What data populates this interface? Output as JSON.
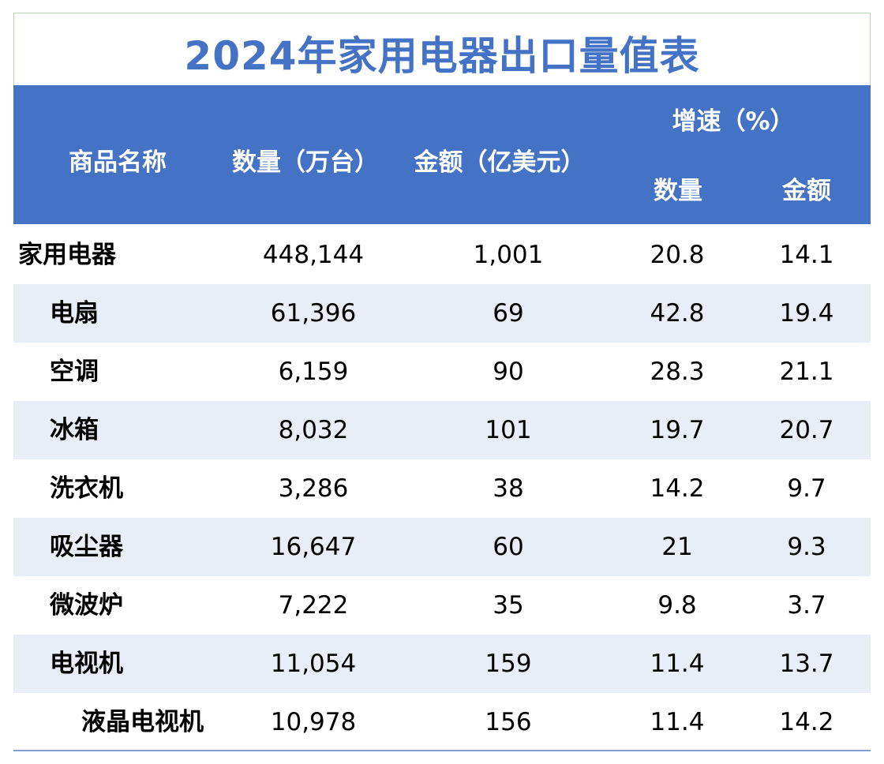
{
  "title": "2024年家用电器出口量值表",
  "header": {
    "name": "商品名称",
    "quantity": "数量（万台）",
    "amount": "金额（亿美元）",
    "growth": "增速（%）",
    "growth_quantity": "数量",
    "growth_amount": "金额"
  },
  "colors": {
    "accent": "#4472c4",
    "row_alt": "#e9edf7"
  },
  "rows": [
    {
      "name": "家用电器",
      "quantity": "448,144",
      "amount": "1,001",
      "g_quantity": "20.8",
      "g_amount": "14.1"
    },
    {
      "name": "电扇",
      "quantity": "61,396",
      "amount": "69",
      "g_quantity": "42.8",
      "g_amount": "19.4"
    },
    {
      "name": "空调",
      "quantity": "6,159",
      "amount": "90",
      "g_quantity": "28.3",
      "g_amount": "21.1"
    },
    {
      "name": "冰箱",
      "quantity": "8,032",
      "amount": "101",
      "g_quantity": "19.7",
      "g_amount": "20.7"
    },
    {
      "name": "洗衣机",
      "quantity": "3,286",
      "amount": "38",
      "g_quantity": "14.2",
      "g_amount": "9.7"
    },
    {
      "name": "吸尘器",
      "quantity": "16,647",
      "amount": "60",
      "g_quantity": "21",
      "g_amount": "9.3"
    },
    {
      "name": "微波炉",
      "quantity": "7,222",
      "amount": "35",
      "g_quantity": "9.8",
      "g_amount": "3.7"
    },
    {
      "name": "电视机",
      "quantity": "11,054",
      "amount": "159",
      "g_quantity": "11.4",
      "g_amount": "13.7"
    },
    {
      "name": "液晶电视机",
      "quantity": "10,978",
      "amount": "156",
      "g_quantity": "11.4",
      "g_amount": "14.2"
    }
  ]
}
